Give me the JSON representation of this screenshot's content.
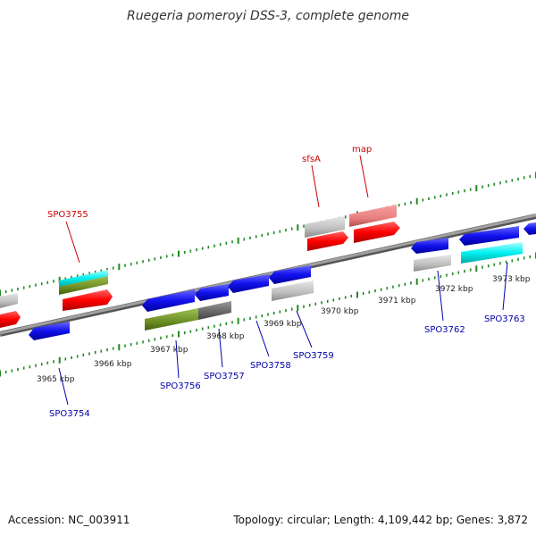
{
  "title": "Ruegeria pomeroyi DSS-3, complete genome",
  "footer": {
    "accession": "Accession: NC_003911",
    "summary": "Topology: circular; Length: 4,109,442 bp; Genes: 3,872"
  },
  "scale_labels": [
    "3965 kbp",
    "3966 kbp",
    "3967 kbp",
    "3968 kbp",
    "3969 kbp",
    "3970 kbp",
    "3971 kbp",
    "3972 kbp",
    "3973 kbp"
  ],
  "gene_labels": {
    "top": [
      "SPO3755",
      "sfsA",
      "map"
    ],
    "bottom": [
      "SPO3754",
      "SPO3756",
      "SPO3757",
      "SPO3758",
      "SPO3759",
      "SPO3762",
      "SPO3763"
    ]
  },
  "colors": {
    "forward_gene": "#ff0000",
    "reverse_gene": "#0000ee",
    "backbone": "#888888",
    "tick": "#228822",
    "top_label": "#cc0000",
    "bottom_label": "#0000aa"
  }
}
